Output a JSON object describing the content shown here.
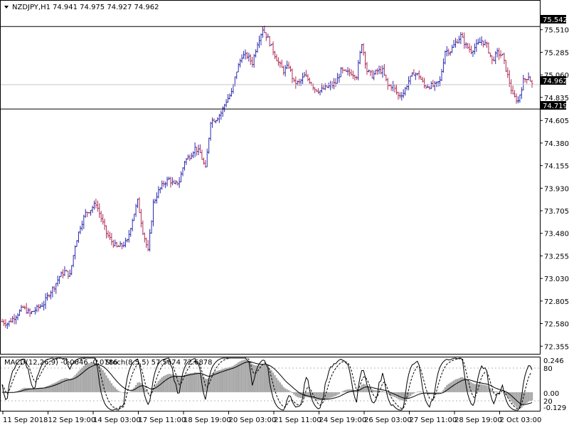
{
  "symbol_header": {
    "symbol": "NZDJPY,H1",
    "ohlc": "74.941 74.975 74.927 74.962"
  },
  "indicator_header": {
    "macd_label": "MACD(12,26,9) -0.0646 -0.0786",
    "stoch_label": "Stoch(8,5,5) 57.5674 72.6878"
  },
  "price_labels": {
    "resistance": "75.542",
    "current": "74.962",
    "support": "74.719"
  },
  "sub_axis_labels": [
    "0.246",
    "80",
    "0.00",
    "20",
    "-0.129"
  ],
  "colors": {
    "bull_bar": "#2b2bb0",
    "bear_bar": "#b02b55",
    "hist": "#a9a9a9",
    "line": "#000000",
    "level_line": "#000000",
    "current_line": "#c8c8c8"
  },
  "chart_data": {
    "type": "bar",
    "subtype": "ohlc",
    "ylim": [
      72.3,
      75.65
    ],
    "yticks": [
      "75.510",
      "75.285",
      "75.060",
      "74.835",
      "74.605",
      "74.380",
      "74.155",
      "73.930",
      "73.705",
      "73.480",
      "73.255",
      "73.030",
      "72.805",
      "72.580",
      "72.355"
    ],
    "xticks": [
      "11 Sep 2018",
      "12 Sep 19:00",
      "14 Sep 03:00",
      "17 Sep 11:00",
      "18 Sep 19:00",
      "20 Sep 03:00",
      "21 Sep 11:00",
      "24 Sep 19:00",
      "26 Sep 03:00",
      "27 Sep 11:00",
      "28 Sep 19:00",
      "2 Oct 03:00"
    ],
    "levels": {
      "resistance": 75.542,
      "support": 74.719,
      "current": 74.962
    },
    "close_path": [
      [
        0,
        72.6
      ],
      [
        3,
        72.58
      ],
      [
        8,
        72.66
      ],
      [
        12,
        72.74
      ],
      [
        16,
        72.68
      ],
      [
        20,
        72.73
      ],
      [
        24,
        72.78
      ],
      [
        27,
        72.88
      ],
      [
        30,
        72.95
      ],
      [
        33,
        73.05
      ],
      [
        36,
        73.1
      ],
      [
        39,
        73.06
      ],
      [
        42,
        73.36
      ],
      [
        45,
        73.55
      ],
      [
        48,
        73.68
      ],
      [
        51,
        73.72
      ],
      [
        54,
        73.78
      ],
      [
        57,
        73.63
      ],
      [
        60,
        73.48
      ],
      [
        63,
        73.4
      ],
      [
        66,
        73.34
      ],
      [
        69,
        73.36
      ],
      [
        72,
        73.4
      ],
      [
        75,
        73.62
      ],
      [
        78,
        73.8
      ],
      [
        81,
        73.5
      ],
      [
        84,
        73.3
      ],
      [
        87,
        73.78
      ],
      [
        90,
        73.9
      ],
      [
        93,
        73.98
      ],
      [
        96,
        74.02
      ],
      [
        99,
        73.96
      ],
      [
        102,
        74.0
      ],
      [
        105,
        74.2
      ],
      [
        108,
        74.25
      ],
      [
        111,
        74.33
      ],
      [
        114,
        74.28
      ],
      [
        117,
        74.12
      ],
      [
        120,
        74.6
      ],
      [
        123,
        74.62
      ],
      [
        126,
        74.68
      ],
      [
        129,
        74.8
      ],
      [
        132,
        74.88
      ],
      [
        135,
        75.1
      ],
      [
        138,
        75.25
      ],
      [
        141,
        75.25
      ],
      [
        144,
        75.18
      ],
      [
        147,
        75.38
      ],
      [
        150,
        75.52
      ],
      [
        153,
        75.42
      ],
      [
        156,
        75.3
      ],
      [
        159,
        75.18
      ],
      [
        162,
        75.1
      ],
      [
        165,
        75.15
      ],
      [
        168,
        74.98
      ],
      [
        171,
        74.98
      ],
      [
        174,
        75.05
      ],
      [
        177,
        75.0
      ],
      [
        180,
        74.92
      ],
      [
        183,
        74.9
      ],
      [
        186,
        74.93
      ],
      [
        189,
        74.95
      ],
      [
        192,
        74.98
      ],
      [
        195,
        75.1
      ],
      [
        198,
        75.08
      ],
      [
        201,
        75.08
      ],
      [
        204,
        75.05
      ],
      [
        207,
        75.38
      ],
      [
        210,
        75.1
      ],
      [
        213,
        75.05
      ],
      [
        216,
        75.1
      ],
      [
        219,
        75.1
      ],
      [
        222,
        74.95
      ],
      [
        225,
        74.95
      ],
      [
        228,
        74.85
      ],
      [
        231,
        74.88
      ],
      [
        234,
        75.0
      ],
      [
        237,
        75.08
      ],
      [
        240,
        75.05
      ],
      [
        243,
        74.95
      ],
      [
        246,
        74.95
      ],
      [
        249,
        74.95
      ],
      [
        252,
        75.0
      ],
      [
        255,
        75.3
      ],
      [
        258,
        75.3
      ],
      [
        261,
        75.38
      ],
      [
        264,
        75.45
      ],
      [
        267,
        75.35
      ],
      [
        270,
        75.3
      ],
      [
        273,
        75.35
      ],
      [
        276,
        75.4
      ],
      [
        279,
        75.35
      ],
      [
        282,
        75.2
      ],
      [
        285,
        75.28
      ],
      [
        288,
        75.25
      ],
      [
        291,
        75.05
      ],
      [
        294,
        74.85
      ],
      [
        297,
        74.8
      ],
      [
        300,
        75.0
      ],
      [
        303,
        75.05
      ],
      [
        305,
        74.962
      ]
    ],
    "subwindow": {
      "name": "MACD / Stoch",
      "ylim": [
        -0.129,
        0.246
      ]
    }
  }
}
